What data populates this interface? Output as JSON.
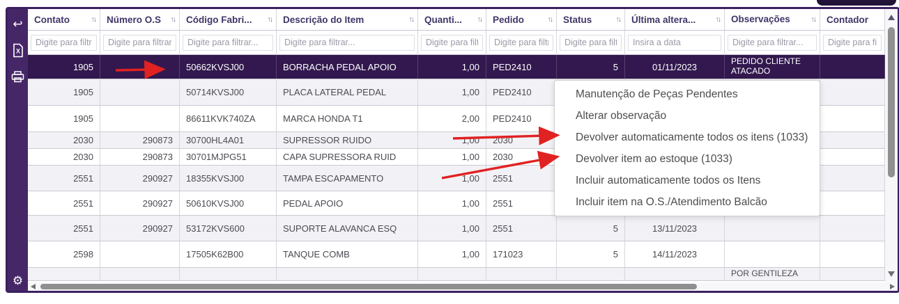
{
  "window": {
    "accent_color": "#452768",
    "selected_row_color": "#32184e",
    "annotation_arrow_color": "#e02222"
  },
  "sidebar": {
    "icons": [
      {
        "name": "back-icon"
      },
      {
        "name": "excel-export-icon"
      },
      {
        "name": "print-icon"
      },
      {
        "name": "settings-gear-icon"
      }
    ],
    "gear_glyph": "⚙",
    "back_glyph": "↩"
  },
  "table": {
    "columns": [
      {
        "label": "Contato",
        "sort_icon": "↑↓",
        "filter_placeholder": "Digite para filtrar..."
      },
      {
        "label": "Número O.S",
        "sort_icon": "↑↓",
        "filter_placeholder": "Digite para filtrar..."
      },
      {
        "label": "Código Fabri...",
        "sort_icon": "↑↓",
        "filter_placeholder": "Digite para filtrar..."
      },
      {
        "label": "Descrição do Item",
        "sort_icon": "↑↓",
        "filter_placeholder": "Digite para filtrar..."
      },
      {
        "label": "Quanti...",
        "sort_icon": "↑↓",
        "filter_placeholder": "Digite para filtrar..."
      },
      {
        "label": "Pedido",
        "sort_icon": "↑↓",
        "filter_placeholder": "Digite para filtrar..."
      },
      {
        "label": "Status",
        "sort_icon": "↑↓",
        "filter_placeholder": "Digite para filtrar..."
      },
      {
        "label": "Última altera...",
        "sort_icon": "↑↓",
        "filter_placeholder": "Insira a data"
      },
      {
        "label": "Observações",
        "sort_icon": "↑↓",
        "filter_placeholder": "Digite para filtrar..."
      },
      {
        "label": "Contador",
        "sort_icon": "",
        "filter_placeholder": "Digite para filtrar..."
      }
    ],
    "rows": [
      {
        "selected": true,
        "cells": [
          "1905",
          "",
          "50662KVSJ00",
          "BORRACHA PEDAL APOIO",
          "1,00",
          "PED2410",
          "5",
          "01/11/2023",
          "PEDIDO CLIENTE ATACADO",
          ""
        ]
      },
      {
        "selected": false,
        "cells": [
          "1905",
          "",
          "50714KVSJ00",
          "PLACA LATERAL PEDAL",
          "1,00",
          "PED2410",
          "",
          "",
          "",
          ""
        ]
      },
      {
        "selected": false,
        "cells": [
          "1905",
          "",
          "86611KVK740ZA",
          "MARCA HONDA T1",
          "2,00",
          "PED2410",
          "",
          "",
          "",
          ""
        ]
      },
      {
        "selected": false,
        "cells": [
          "2030",
          "290873",
          "30700HL4A01",
          "SUPRESSOR RUIDO",
          "1,00",
          "2030",
          "",
          "",
          "",
          ""
        ]
      },
      {
        "selected": false,
        "cells": [
          "2030",
          "290873",
          "30701MJPG51",
          "CAPA SUPRESSORA RUID",
          "1,00",
          "2030",
          "",
          "",
          "",
          ""
        ]
      },
      {
        "selected": false,
        "cells": [
          "2551",
          "290927",
          "18355KVSJ00",
          "TAMPA ESCAPAMENTO",
          "1,00",
          "2551",
          "",
          "",
          "",
          ""
        ]
      },
      {
        "selected": false,
        "cells": [
          "2551",
          "290927",
          "50610KVSJ00",
          "PEDAL APOIO",
          "1,00",
          "2551",
          "",
          "",
          "",
          ""
        ]
      },
      {
        "selected": false,
        "cells": [
          "2551",
          "290927",
          "53172KVS600",
          "SUPORTE ALAVANCA ESQ",
          "1,00",
          "2551",
          "5",
          "13/11/2023",
          "",
          ""
        ]
      },
      {
        "selected": false,
        "cells": [
          "2598",
          "",
          "17505K62B00",
          "TANQUE COMB",
          "1,00",
          "171023",
          "5",
          "14/11/2023",
          "",
          ""
        ]
      },
      {
        "selected": false,
        "cells": [
          "",
          "",
          "",
          "",
          "",
          "",
          "",
          "",
          "POR GENTILEZA",
          ""
        ]
      }
    ]
  },
  "context_menu": {
    "items": [
      "Manutenção de Peças Pendentes",
      "Alterar observação",
      "Devolver automaticamente todos os itens (1033)",
      "Devolver item ao estoque (1033)",
      "Incluir automaticamente todos os Itens",
      "Incluir item na O.S./Atendimento Balcão"
    ]
  },
  "annotations": {
    "arrows": [
      {
        "name": "arrow-to-codigo-fabricante"
      },
      {
        "name": "arrow-to-devolver-automaticamente"
      },
      {
        "name": "arrow-to-devolver-item-estoque"
      }
    ]
  }
}
